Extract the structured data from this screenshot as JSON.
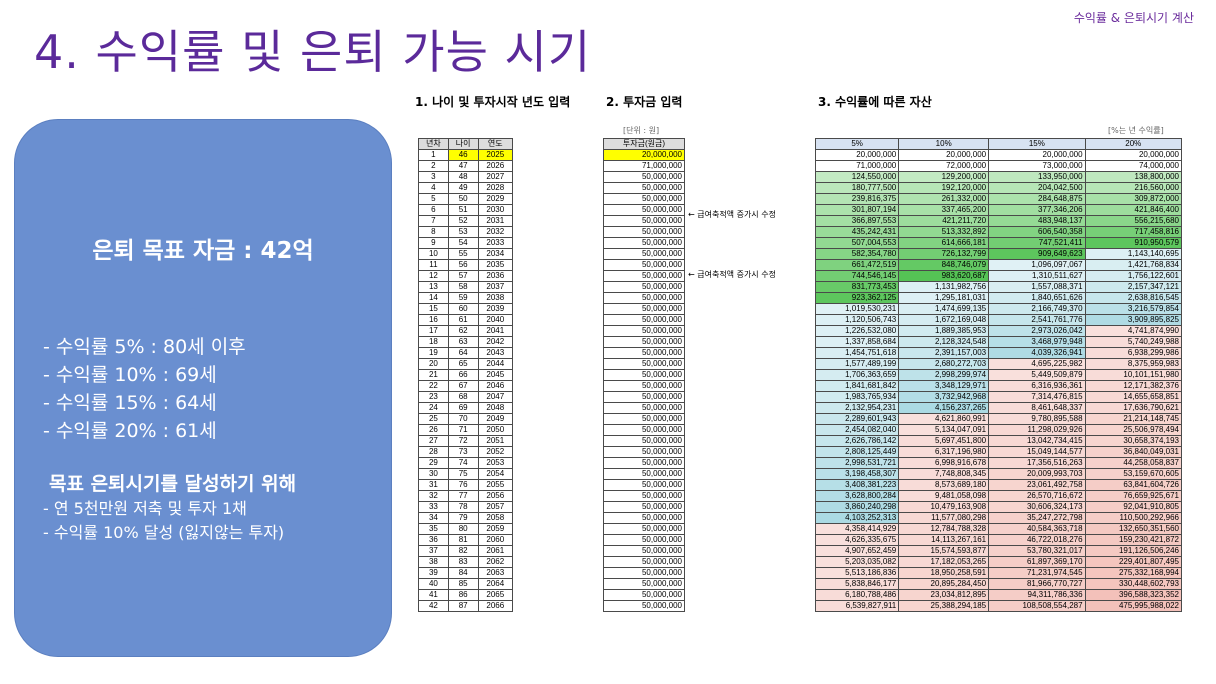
{
  "corner_label": "수익률 & 은퇴시기 계산",
  "title": "4. 수익률 및 은퇴 가능 시기",
  "panel": {
    "goal": "은퇴 목표 자금 : 42억",
    "rates": [
      "-  수익률   5% : 80세 이후",
      "-  수익률 10% : 69세",
      "-  수익률 15% : 64세",
      "-  수익률 20% : 61세"
    ],
    "achieve_heading": "목표 은퇴시기를 달성하기 위해",
    "achieve_items": [
      "- 연 5천만원 저축 및 투자 1채",
      "- 수익률 10% 달성 (잃지않는 투자)"
    ]
  },
  "sections": {
    "s1": "1. 나이 및 투자시작 년도 입력",
    "s2": "2. 투자금 입력",
    "s3": "3. 수익률에 따른 자산"
  },
  "unit_won": "[단위 : 원]",
  "unit_rate": "[%는 년 수익률]",
  "headers1": [
    "년차",
    "나이",
    "연도"
  ],
  "header2": "투자금(원금)",
  "headers3": [
    "5%",
    "10%",
    "15%",
    "20%"
  ],
  "notes": [
    "← 급여축적액 증가시 수정",
    "← 급여축적액 증가시 수정"
  ],
  "principal": [
    "20,000,000",
    "71,000,000",
    "50,000,000",
    "50,000,000",
    "50,000,000",
    "50,000,000",
    "50,000,000",
    "50,000,000",
    "50,000,000",
    "50,000,000",
    "50,000,000",
    "50,000,000",
    "50,000,000",
    "50,000,000",
    "50,000,000",
    "50,000,000",
    "50,000,000",
    "50,000,000",
    "50,000,000",
    "50,000,000",
    "50,000,000",
    "50,000,000",
    "50,000,000",
    "50,000,000",
    "50,000,000",
    "50,000,000",
    "50,000,000",
    "50,000,000",
    "50,000,000",
    "50,000,000",
    "50,000,000",
    "50,000,000",
    "50,000,000",
    "50,000,000",
    "50,000,000",
    "50,000,000",
    "50,000,000",
    "50,000,000",
    "50,000,000",
    "50,000,000",
    "50,000,000",
    "50,000,000"
  ],
  "rows": [
    [
      "1",
      "46",
      "2025",
      "20,000,000",
      "20,000,000",
      "20,000,000",
      "20,000,000"
    ],
    [
      "2",
      "47",
      "2026",
      "71,000,000",
      "72,000,000",
      "73,000,000",
      "74,000,000"
    ],
    [
      "3",
      "48",
      "2027",
      "124,550,000",
      "129,200,000",
      "133,950,000",
      "138,800,000"
    ],
    [
      "4",
      "49",
      "2028",
      "180,777,500",
      "192,120,000",
      "204,042,500",
      "216,560,000"
    ],
    [
      "5",
      "50",
      "2029",
      "239,816,375",
      "261,332,000",
      "284,648,875",
      "309,872,000"
    ],
    [
      "6",
      "51",
      "2030",
      "301,807,194",
      "337,465,200",
      "377,346,206",
      "421,846,400"
    ],
    [
      "7",
      "52",
      "2031",
      "366,897,553",
      "421,211,720",
      "483,948,137",
      "556,215,680"
    ],
    [
      "8",
      "53",
      "2032",
      "435,242,431",
      "513,332,892",
      "606,540,358",
      "717,458,816"
    ],
    [
      "9",
      "54",
      "2033",
      "507,004,553",
      "614,666,181",
      "747,521,411",
      "910,950,579"
    ],
    [
      "10",
      "55",
      "2034",
      "582,354,780",
      "726,132,799",
      "909,649,623",
      "1,143,140,695"
    ],
    [
      "11",
      "56",
      "2035",
      "661,472,519",
      "848,746,079",
      "1,096,097,067",
      "1,421,768,834"
    ],
    [
      "12",
      "57",
      "2036",
      "744,546,145",
      "983,620,687",
      "1,310,511,627",
      "1,756,122,601"
    ],
    [
      "13",
      "58",
      "2037",
      "831,773,453",
      "1,131,982,756",
      "1,557,088,371",
      "2,157,347,121"
    ],
    [
      "14",
      "59",
      "2038",
      "923,362,125",
      "1,295,181,031",
      "1,840,651,626",
      "2,638,816,545"
    ],
    [
      "15",
      "60",
      "2039",
      "1,019,530,231",
      "1,474,699,135",
      "2,166,749,370",
      "3,216,579,854"
    ],
    [
      "16",
      "61",
      "2040",
      "1,120,506,743",
      "1,672,169,048",
      "2,541,761,776",
      "3,909,895,825"
    ],
    [
      "17",
      "62",
      "2041",
      "1,226,532,080",
      "1,889,385,953",
      "2,973,026,042",
      "4,741,874,990"
    ],
    [
      "18",
      "63",
      "2042",
      "1,337,858,684",
      "2,128,324,548",
      "3,468,979,948",
      "5,740,249,988"
    ],
    [
      "19",
      "64",
      "2043",
      "1,454,751,618",
      "2,391,157,003",
      "4,039,326,941",
      "6,938,299,986"
    ],
    [
      "20",
      "65",
      "2044",
      "1,577,489,199",
      "2,680,272,703",
      "4,695,225,982",
      "8,375,959,983"
    ],
    [
      "21",
      "66",
      "2045",
      "1,706,363,659",
      "2,998,299,974",
      "5,449,509,879",
      "10,101,151,980"
    ],
    [
      "22",
      "67",
      "2046",
      "1,841,681,842",
      "3,348,129,971",
      "6,316,936,361",
      "12,171,382,376"
    ],
    [
      "23",
      "68",
      "2047",
      "1,983,765,934",
      "3,732,942,968",
      "7,314,476,815",
      "14,655,658,851"
    ],
    [
      "24",
      "69",
      "2048",
      "2,132,954,231",
      "4,156,237,265",
      "8,461,648,337",
      "17,636,790,621"
    ],
    [
      "25",
      "70",
      "2049",
      "2,289,601,943",
      "4,621,860,991",
      "9,780,895,588",
      "21,214,148,745"
    ],
    [
      "26",
      "71",
      "2050",
      "2,454,082,040",
      "5,134,047,091",
      "11,298,029,926",
      "25,506,978,494"
    ],
    [
      "27",
      "72",
      "2051",
      "2,626,786,142",
      "5,697,451,800",
      "13,042,734,415",
      "30,658,374,193"
    ],
    [
      "28",
      "73",
      "2052",
      "2,808,125,449",
      "6,317,196,980",
      "15,049,144,577",
      "36,840,049,031"
    ],
    [
      "29",
      "74",
      "2053",
      "2,998,531,721",
      "6,998,916,678",
      "17,356,516,263",
      "44,258,058,837"
    ],
    [
      "30",
      "75",
      "2054",
      "3,198,458,307",
      "7,748,808,345",
      "20,009,993,703",
      "53,159,670,605"
    ],
    [
      "31",
      "76",
      "2055",
      "3,408,381,223",
      "8,573,689,180",
      "23,061,492,758",
      "63,841,604,726"
    ],
    [
      "32",
      "77",
      "2056",
      "3,628,800,284",
      "9,481,058,098",
      "26,570,716,672",
      "76,659,925,671"
    ],
    [
      "33",
      "78",
      "2057",
      "3,860,240,298",
      "10,479,163,908",
      "30,606,324,173",
      "92,041,910,805"
    ],
    [
      "34",
      "79",
      "2058",
      "4,103,252,313",
      "11,577,080,298",
      "35,247,272,798",
      "110,500,292,966"
    ],
    [
      "35",
      "80",
      "2059",
      "4,358,414,929",
      "12,784,788,328",
      "40,584,363,718",
      "132,650,351,560"
    ],
    [
      "36",
      "81",
      "2060",
      "4,626,335,675",
      "14,113,267,161",
      "46,722,018,276",
      "159,230,421,872"
    ],
    [
      "37",
      "82",
      "2061",
      "4,907,652,459",
      "15,574,593,877",
      "53,780,321,017",
      "191,126,506,246"
    ],
    [
      "38",
      "83",
      "2062",
      "5,203,035,082",
      "17,182,053,265",
      "61,897,369,170",
      "229,401,807,495"
    ],
    [
      "39",
      "84",
      "2063",
      "5,513,186,836",
      "18,950,258,591",
      "71,231,974,545",
      "275,332,168,994"
    ],
    [
      "40",
      "85",
      "2064",
      "5,838,846,177",
      "20,895,284,450",
      "81,966,770,727",
      "330,448,602,793"
    ],
    [
      "41",
      "86",
      "2065",
      "6,180,788,486",
      "23,034,812,895",
      "94,311,786,336",
      "396,588,323,352"
    ],
    [
      "42",
      "87",
      "2066",
      "6,539,827,911",
      "25,388,294,185",
      "108,508,554,287",
      "475,995,988,022"
    ]
  ]
}
